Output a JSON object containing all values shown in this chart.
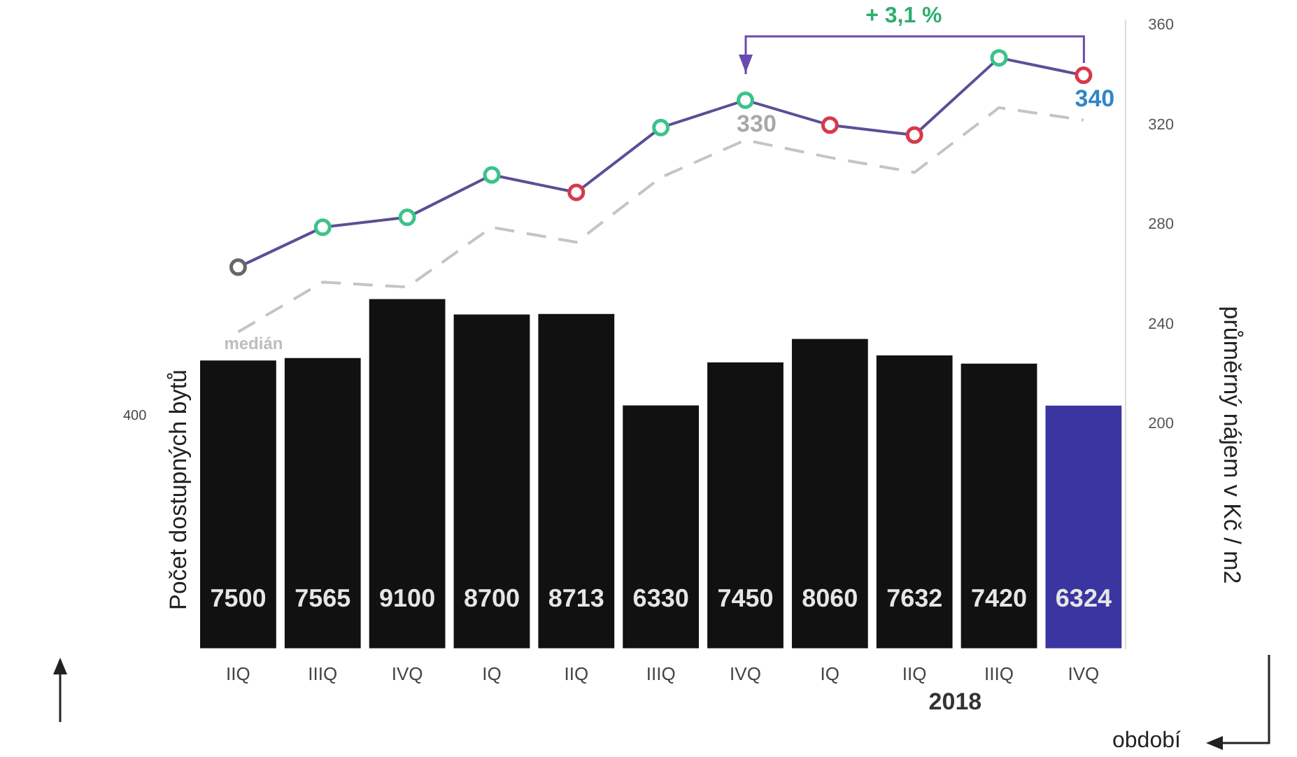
{
  "chart_data": {
    "type": "bar",
    "ylabel": "Počet dostupných bytů",
    "y2label": "průměrný nájem v Kč / m2",
    "xlabel": "období",
    "categories": [
      "IIQ",
      "IIIQ",
      "IVQ",
      "IQ",
      "IIQ",
      "IIIQ",
      "IVQ",
      "IQ",
      "IIQ",
      "IIIQ",
      "IVQ"
    ],
    "ylim": [
      0,
      16360
    ],
    "y2lim": [
      110,
      362
    ],
    "y2ticks": [
      200,
      240,
      280,
      320,
      360
    ],
    "legend": false,
    "grid": false,
    "series": [
      {
        "colors": [
          "#111111",
          "#111111",
          "#111111",
          "#111111",
          "#111111",
          "#111111",
          "#111111",
          "#111111",
          "#111111",
          "#111111",
          "#3a35a0"
        ],
        "values": [
          7500,
          7565,
          9100,
          8700,
          8713,
          6330,
          7450,
          8060,
          7632,
          7420,
          6324
        ],
        "value_labels": [
          "7500",
          "7565",
          "9100",
          "8700",
          "8713",
          "6330",
          "7450",
          "8060",
          "7632",
          "7420",
          "6324"
        ]
      },
      {
        "type": "line",
        "axis": "y2",
        "color": "#5b4f96",
        "marker": "circle",
        "line_style": "solid",
        "colors": [
          "#666666",
          "#3cc389",
          "#3cc389",
          "#3cc389",
          "#d63a4a",
          "#3cc389",
          "#3cc389",
          "#d63a4a",
          "#d63a4a",
          "#3cc389",
          "#d63a4a"
        ],
        "values": [
          263,
          279,
          283,
          300,
          293,
          319,
          330,
          320,
          316,
          347,
          340
        ],
        "value_labels": [
          null,
          null,
          null,
          null,
          null,
          null,
          "330",
          null,
          null,
          null,
          "340"
        ]
      },
      {
        "type": "line",
        "axis": "y2",
        "name": "medián",
        "color": "#c4c4c4",
        "marker": "none",
        "line_style": "dashed",
        "values": [
          237,
          257,
          255,
          279,
          273,
          299,
          314,
          307,
          301,
          327,
          322
        ]
      }
    ],
    "annotations": [
      "+ 3,1 %",
      "2018",
      "400"
    ]
  }
}
